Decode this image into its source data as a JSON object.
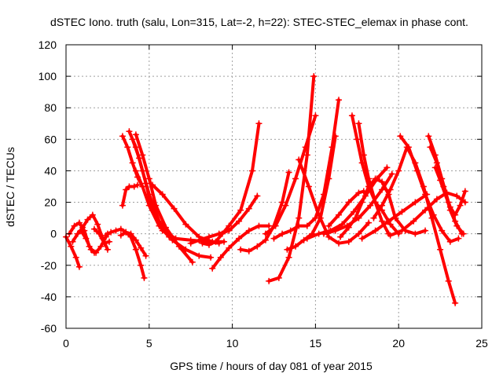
{
  "chart_data": {
    "type": "scatter",
    "title": "dSTEC Iono. truth (salu, Lon=315, Lat=-2, h=22): STEC-STEC_elemax in phase cont.",
    "xlabel": "GPS time / hours of day 081 of year 2015",
    "ylabel": "dSTEC  / TECUs",
    "xlim": [
      0,
      25
    ],
    "ylim": [
      -60,
      120
    ],
    "xticks": [
      0,
      5,
      10,
      15,
      20,
      25
    ],
    "yticks": [
      -60,
      -40,
      -20,
      0,
      20,
      40,
      60,
      80,
      100,
      120
    ],
    "grid": true,
    "marker": "+",
    "color": "#ff0000",
    "series": [
      {
        "x": [
          0.0,
          0.3,
          0.6,
          0.8
        ],
        "y": [
          -2,
          -8,
          -15,
          -21
        ]
      },
      {
        "x": [
          0.2,
          0.5,
          0.8,
          1.1,
          1.4,
          1.7
        ],
        "y": [
          0,
          5,
          7,
          2,
          -8,
          -12
        ]
      },
      {
        "x": [
          0.4,
          0.7,
          1.0,
          1.3,
          1.6,
          1.9,
          2.2,
          2.5
        ],
        "y": [
          -5,
          0,
          4,
          9,
          12,
          6,
          -3,
          -10
        ]
      },
      {
        "x": [
          0.9,
          1.2,
          1.5,
          1.8,
          2.1,
          2.4,
          2.5
        ],
        "y": [
          2,
          -3,
          -10,
          -12,
          -8,
          -2,
          0
        ]
      },
      {
        "x": [
          1.7,
          2.0,
          2.3,
          2.6
        ],
        "y": [
          3,
          0,
          -6,
          -5
        ]
      },
      {
        "x": [
          2.4,
          2.7,
          3.0,
          3.3,
          3.6,
          3.9,
          4.2,
          4.5,
          4.7
        ],
        "y": [
          -1,
          1,
          2,
          3,
          1,
          -2,
          -10,
          -20,
          -28
        ]
      },
      {
        "x": [
          3.3,
          3.6,
          3.9,
          4.2,
          4.5,
          4.8
        ],
        "y": [
          -1,
          1,
          0,
          -4,
          -9,
          -14
        ]
      },
      {
        "x": [
          3.4,
          3.7,
          4.0,
          4.3,
          4.6
        ],
        "y": [
          62,
          55,
          45,
          36,
          30
        ]
      },
      {
        "x": [
          3.4,
          3.6,
          3.8,
          4.1,
          4.3
        ],
        "y": [
          18,
          28,
          30,
          30,
          31
        ]
      },
      {
        "x": [
          3.8,
          4.2,
          4.6,
          5.0,
          5.6,
          6.4,
          7.2,
          8.0,
          8.7
        ],
        "y": [
          65,
          55,
          40,
          25,
          8,
          -4,
          -10,
          -14,
          -15
        ]
      },
      {
        "x": [
          4.0,
          4.4,
          4.8,
          5.2,
          5.8,
          6.6,
          7.5,
          8.5,
          9.2
        ],
        "y": [
          60,
          48,
          32,
          15,
          2,
          -3,
          -4,
          -5,
          -6
        ]
      },
      {
        "x": [
          4.2,
          4.6,
          5.0,
          5.4,
          6.0,
          6.8,
          7.6
        ],
        "y": [
          63,
          50,
          35,
          18,
          4,
          -8,
          -18
        ]
      },
      {
        "x": [
          4.2,
          4.6,
          5.0,
          5.6,
          6.2
        ],
        "y": [
          40,
          30,
          18,
          5,
          -2
        ]
      },
      {
        "x": [
          5.2,
          5.8,
          6.5,
          7.2,
          8.0,
          8.8,
          9.5
        ],
        "y": [
          31,
          25,
          16,
          6,
          -2,
          -5,
          -5
        ]
      },
      {
        "x": [
          8.2,
          8.6,
          9.0,
          9.4,
          9.8,
          10.5,
          11.2,
          11.6
        ],
        "y": [
          -6,
          -7,
          -5,
          0,
          5,
          15,
          40,
          70
        ]
      },
      {
        "x": [
          7.5,
          8.0,
          8.6,
          9.2,
          9.8,
          10.4,
          11.0,
          11.5
        ],
        "y": [
          -6,
          -4,
          -2,
          0,
          2,
          8,
          16,
          24
        ]
      },
      {
        "x": [
          8.8,
          9.3,
          9.8,
          10.4,
          11.0,
          11.6,
          12.2
        ],
        "y": [
          -22,
          -15,
          -9,
          -3,
          2,
          5,
          5
        ]
      },
      {
        "x": [
          10.5,
          11.0,
          11.5,
          12.0,
          12.5,
          13.0,
          13.4
        ],
        "y": [
          -10,
          -11,
          -8,
          -4,
          5,
          20,
          39
        ]
      },
      {
        "x": [
          12.2,
          12.8,
          13.4,
          14.0,
          14.5,
          14.9
        ],
        "y": [
          -30,
          -28,
          -15,
          10,
          50,
          100
        ]
      },
      {
        "x": [
          12.0,
          12.6,
          13.2,
          13.8,
          14.4,
          15.0
        ],
        "y": [
          0,
          5,
          18,
          35,
          55,
          75
        ]
      },
      {
        "x": [
          12.5,
          13.0,
          13.5,
          14.0,
          14.5,
          15.0,
          15.5,
          16.0,
          16.4
        ],
        "y": [
          -3,
          0,
          2,
          5,
          5,
          10,
          25,
          55,
          85
        ]
      },
      {
        "x": [
          13.3,
          13.8,
          14.3,
          14.8,
          15.3,
          15.8,
          16.2
        ],
        "y": [
          -10,
          -8,
          -4,
          0,
          10,
          35,
          62
        ]
      },
      {
        "x": [
          14.0,
          14.6,
          15.2,
          15.8,
          16.4,
          17.0,
          17.6,
          18.2
        ],
        "y": [
          47,
          30,
          12,
          -2,
          -6,
          -5,
          0,
          7
        ]
      },
      {
        "x": [
          14.5,
          15.2,
          15.9,
          16.6,
          17.3,
          18.0,
          18.7,
          19.3
        ],
        "y": [
          -3,
          0,
          2,
          6,
          14,
          24,
          35,
          42
        ]
      },
      {
        "x": [
          15.5,
          16.2,
          16.9,
          17.6,
          18.3,
          19.0,
          19.6
        ],
        "y": [
          0,
          2,
          5,
          10,
          18,
          28,
          38
        ]
      },
      {
        "x": [
          16.5,
          17.0,
          17.4,
          17.8,
          18.2,
          18.6,
          19.0,
          19.4,
          19.8,
          20.4,
          21.0,
          21.6
        ],
        "y": [
          -2,
          4,
          10,
          20,
          30,
          35,
          33,
          25,
          10,
          2,
          0,
          2
        ]
      },
      {
        "x": [
          17.2,
          17.5,
          17.8,
          18.2,
          18.6,
          19.0,
          19.5,
          20.0
        ],
        "y": [
          75,
          60,
          45,
          30,
          20,
          15,
          6,
          0
        ]
      },
      {
        "x": [
          17.6,
          17.9,
          18.2,
          18.6,
          19.0,
          19.4
        ],
        "y": [
          70,
          50,
          35,
          20,
          8,
          0
        ]
      },
      {
        "x": [
          15.8,
          16.4,
          17.0,
          17.6,
          17.9
        ],
        "y": [
          5,
          12,
          20,
          26,
          27
        ]
      },
      {
        "x": [
          18.5,
          19.0,
          19.5,
          20.0,
          20.5,
          21.0,
          21.5,
          22.0,
          22.5,
          23.0,
          23.4
        ],
        "y": [
          10,
          18,
          28,
          40,
          55,
          45,
          30,
          10,
          -10,
          -30,
          -44
        ]
      },
      {
        "x": [
          20.1,
          20.6,
          21.1,
          21.6,
          22.1,
          22.6,
          23.1,
          23.6
        ],
        "y": [
          62,
          55,
          40,
          25,
          12,
          2,
          -5,
          -3
        ]
      },
      {
        "x": [
          21.8,
          22.2,
          22.6,
          23.0,
          23.4,
          23.8
        ],
        "y": [
          62,
          50,
          35,
          20,
          8,
          0
        ]
      },
      {
        "x": [
          21.9,
          22.3,
          22.7,
          23.1,
          23.5,
          23.9
        ],
        "y": [
          55,
          45,
          30,
          15,
          5,
          0
        ]
      },
      {
        "x": [
          22.2,
          22.5,
          22.8,
          23.1,
          23.4,
          23.7,
          24.0
        ],
        "y": [
          42,
          34,
          25,
          17,
          12,
          18,
          27
        ]
      },
      {
        "x": [
          19.5,
          20.2,
          20.9,
          21.6,
          22.3,
          22.9,
          23.5,
          24.0
        ],
        "y": [
          -1,
          2,
          8,
          15,
          22,
          26,
          24,
          20
        ]
      },
      {
        "x": [
          17.8,
          18.6,
          19.4,
          20.2,
          21.0,
          21.7
        ],
        "y": [
          -3,
          2,
          8,
          14,
          20,
          25
        ]
      }
    ]
  }
}
